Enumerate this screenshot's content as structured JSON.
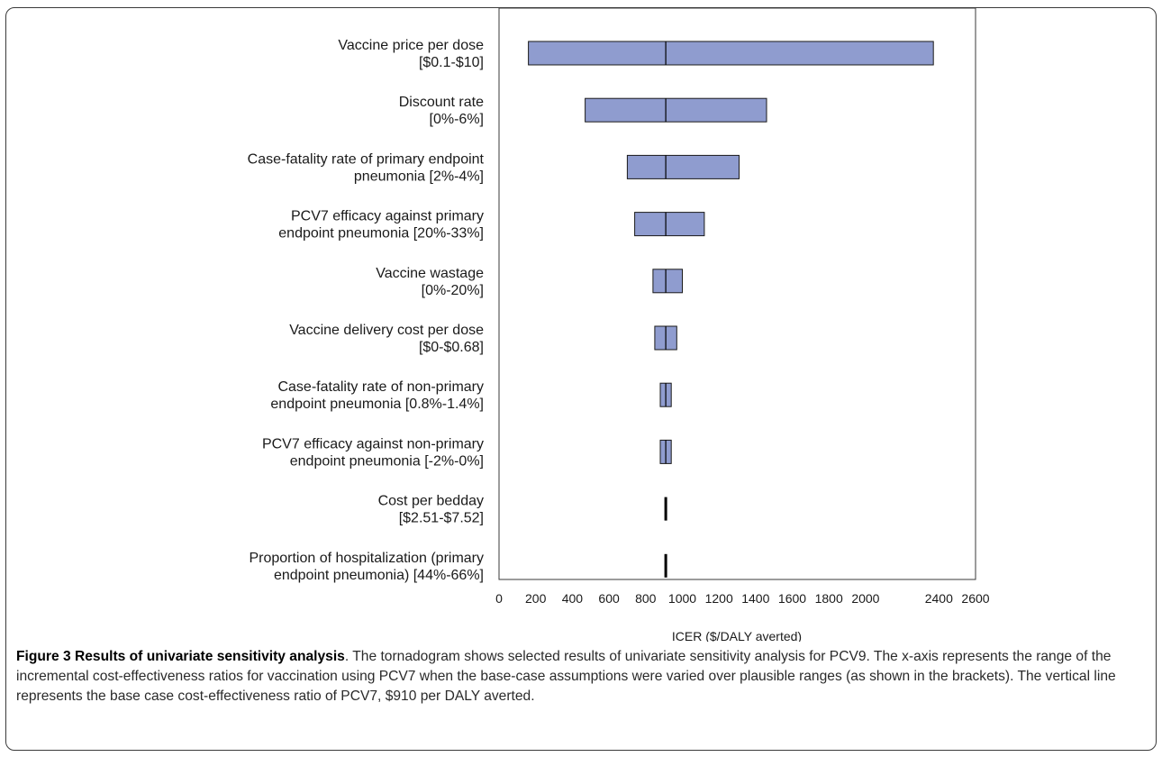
{
  "chart_data": {
    "type": "tornado",
    "categories": [
      [
        "Vaccine price per dose",
        "[$0.1-$10]"
      ],
      [
        "Discount rate",
        "[0%-6%]"
      ],
      [
        "Case-fatality rate of primary endpoint",
        "pneumonia [2%-4%]"
      ],
      [
        "PCV7 efficacy against primary",
        "endpoint pneumonia [20%-33%]"
      ],
      [
        "Vaccine wastage",
        "[0%-20%]"
      ],
      [
        "Vaccine delivery cost per dose",
        "[$0-$0.68]"
      ],
      [
        "Case-fatality rate of non-primary",
        "endpoint pneumonia [0.8%-1.4%]"
      ],
      [
        "PCV7 efficacy against non-primary",
        "endpoint pneumonia [-2%-0%]"
      ],
      [
        "Cost per bedday",
        "[$2.51-$7.52]"
      ],
      [
        "Proportion of hospitalization (primary",
        "endpoint pneumonia) [44%-66%]"
      ]
    ],
    "low": [
      160,
      470,
      700,
      740,
      840,
      850,
      880,
      880,
      905,
      905
    ],
    "high": [
      2370,
      1460,
      1310,
      1120,
      1000,
      970,
      940,
      940,
      915,
      915
    ],
    "base_case": 910,
    "xlim": [
      0,
      2600
    ],
    "xticks": [
      0,
      200,
      400,
      600,
      800,
      1000,
      1200,
      1400,
      1600,
      1800,
      2000,
      2400,
      2600
    ],
    "xlabel": "ICER ($/DALY averted)",
    "colors": {
      "bar": "#8f9ccf",
      "bar_stroke": "#1a1a1a",
      "base_line": "#000000"
    }
  },
  "caption": {
    "title": "Figure 3 Results of univariate sensitivity analysis",
    "text": ". The tornadogram shows selected results of univariate sensitivity analysis for PCV9. The x-axis represents the range of the incremental cost-effectiveness ratios for vaccination using PCV7 when the base-case assumptions were varied over plausible ranges (as shown in the brackets). The vertical line represents the base case cost-effectiveness ratio of PCV7, $910 per DALY averted."
  }
}
